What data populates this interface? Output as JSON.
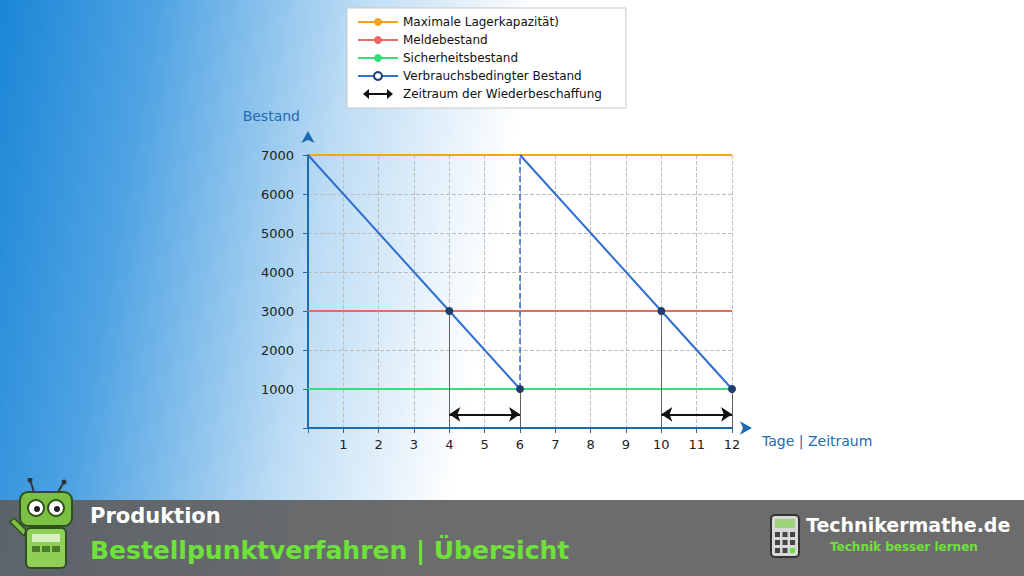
{
  "chart_data": {
    "type": "line",
    "xlabel": "Tage | Zeitraum",
    "ylabel": "Bestand",
    "xlim": [
      0,
      12
    ],
    "ylim": [
      0,
      7000
    ],
    "xticks": [
      1,
      2,
      3,
      4,
      5,
      6,
      7,
      8,
      9,
      10,
      11,
      12
    ],
    "yticks": [
      1000,
      2000,
      3000,
      4000,
      5000,
      6000,
      7000
    ],
    "grid": true,
    "legend": "top",
    "series": [
      {
        "name": "Maximale Lagerkapazität)",
        "color": "#f5a31e",
        "x": [
          0,
          12
        ],
        "values": [
          7000,
          7000
        ]
      },
      {
        "name": "Meldebestand",
        "color": "#e86a62",
        "x": [
          0,
          12
        ],
        "values": [
          3000,
          3000
        ]
      },
      {
        "name": "Sicherheitsbestand",
        "color": "#35e07a",
        "x": [
          0,
          12
        ],
        "values": [
          1000,
          1000
        ]
      },
      {
        "name": "Verbrauchsbedingter Bestand",
        "color": "#2f6fd0",
        "marker": "circle",
        "x": [
          0,
          4,
          6,
          6,
          10,
          12
        ],
        "values": [
          7000,
          3000,
          1000,
          7000,
          3000,
          1000
        ]
      },
      {
        "name": "Zeitraum der Wiederbeschaffung",
        "type": "interval",
        "color": "#111111",
        "line_style": "double_arrow",
        "intervals": [
          [
            4,
            6
          ],
          [
            10,
            12
          ]
        ],
        "y": 350
      }
    ]
  },
  "footer": {
    "section": "Produktion",
    "title": "Bestellpunktverfahren | Übersicht",
    "brand": "Technikermathe.de",
    "slogan": "Technik besser lernen"
  }
}
